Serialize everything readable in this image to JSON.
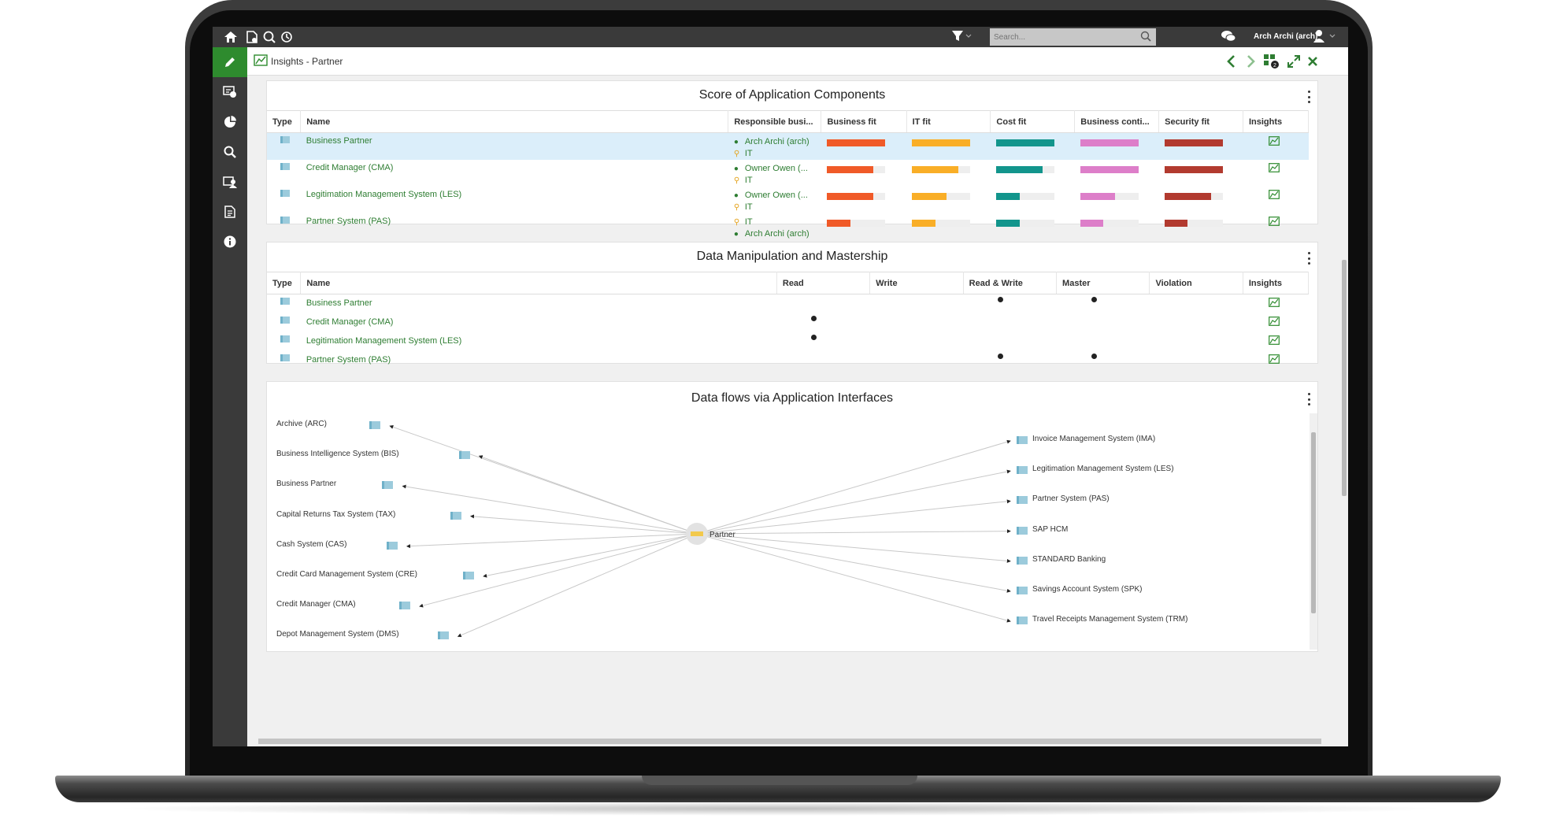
{
  "topbar": {
    "search_placeholder": "Search...",
    "user_name": "Arch Archi (arch)"
  },
  "tab": {
    "title": "Insights - Partner"
  },
  "colors": {
    "accent": "#2e8b2e",
    "business_fit": "#f05a28",
    "it_fit": "#f9ae27",
    "cost_fit": "#12958c",
    "business_continuity": "#dd7ec9",
    "security_fit": "#b23a2f"
  },
  "score_panel": {
    "title": "Score of Application Components",
    "columns": [
      "Type",
      "Name",
      "Responsible busi...",
      "Business fit",
      "IT fit",
      "Cost fit",
      "Business conti...",
      "Security fit",
      "Insights"
    ],
    "rows": [
      {
        "name": "Business Partner",
        "resp1": "Arch Archi (arch)",
        "resp2": "IT",
        "scores": [
          1.0,
          1.0,
          1.0,
          1.0,
          1.0
        ],
        "selected": true
      },
      {
        "name": "Credit Manager (CMA)",
        "resp1": "Owner Owen (...",
        "resp2": "IT",
        "scores": [
          0.8,
          0.8,
          0.8,
          1.0,
          1.0
        ],
        "selected": false
      },
      {
        "name": "Legitimation Management System (LES)",
        "resp1": "Owner Owen (...",
        "resp2": "IT",
        "scores": [
          0.8,
          0.6,
          0.4,
          0.6,
          0.8
        ],
        "selected": false
      },
      {
        "name": "Partner System (PAS)",
        "resp1": "IT",
        "resp2": "Arch Archi (arch)",
        "scores": [
          0.4,
          0.4,
          0.4,
          0.4,
          0.4
        ],
        "selected": false
      }
    ]
  },
  "data_panel": {
    "title": "Data Manipulation and Mastership",
    "columns": [
      "Type",
      "Name",
      "Read",
      "Write",
      "Read & Write",
      "Master",
      "Violation",
      "Insights"
    ],
    "rows": [
      {
        "name": "Business Partner",
        "read": false,
        "write": false,
        "read_write": true,
        "master": true,
        "violation": false
      },
      {
        "name": "Credit Manager (CMA)",
        "read": true,
        "write": false,
        "read_write": false,
        "master": false,
        "violation": false
      },
      {
        "name": "Legitimation Management System (LES)",
        "read": true,
        "write": false,
        "read_write": false,
        "master": false,
        "violation": false
      },
      {
        "name": "Partner System (PAS)",
        "read": false,
        "write": false,
        "read_write": true,
        "master": true,
        "violation": false
      }
    ]
  },
  "flow_panel": {
    "title": "Data flows via Application Interfaces",
    "center": "Partner",
    "left_nodes": [
      "Archive (ARC)",
      "Business Intelligence System (BIS)",
      "Business Partner",
      "Capital Returns Tax System (TAX)",
      "Cash System (CAS)",
      "Credit Card Management System (CRE)",
      "Credit Manager (CMA)",
      "Depot Management System (DMS)"
    ],
    "right_nodes": [
      "Invoice Management System (IMA)",
      "Legitimation Management System (LES)",
      "Partner System (PAS)",
      "SAP HCM",
      "STANDARD Banking",
      "Savings Account System (SPK)",
      "Travel Receipts Management System (TRM)"
    ]
  }
}
